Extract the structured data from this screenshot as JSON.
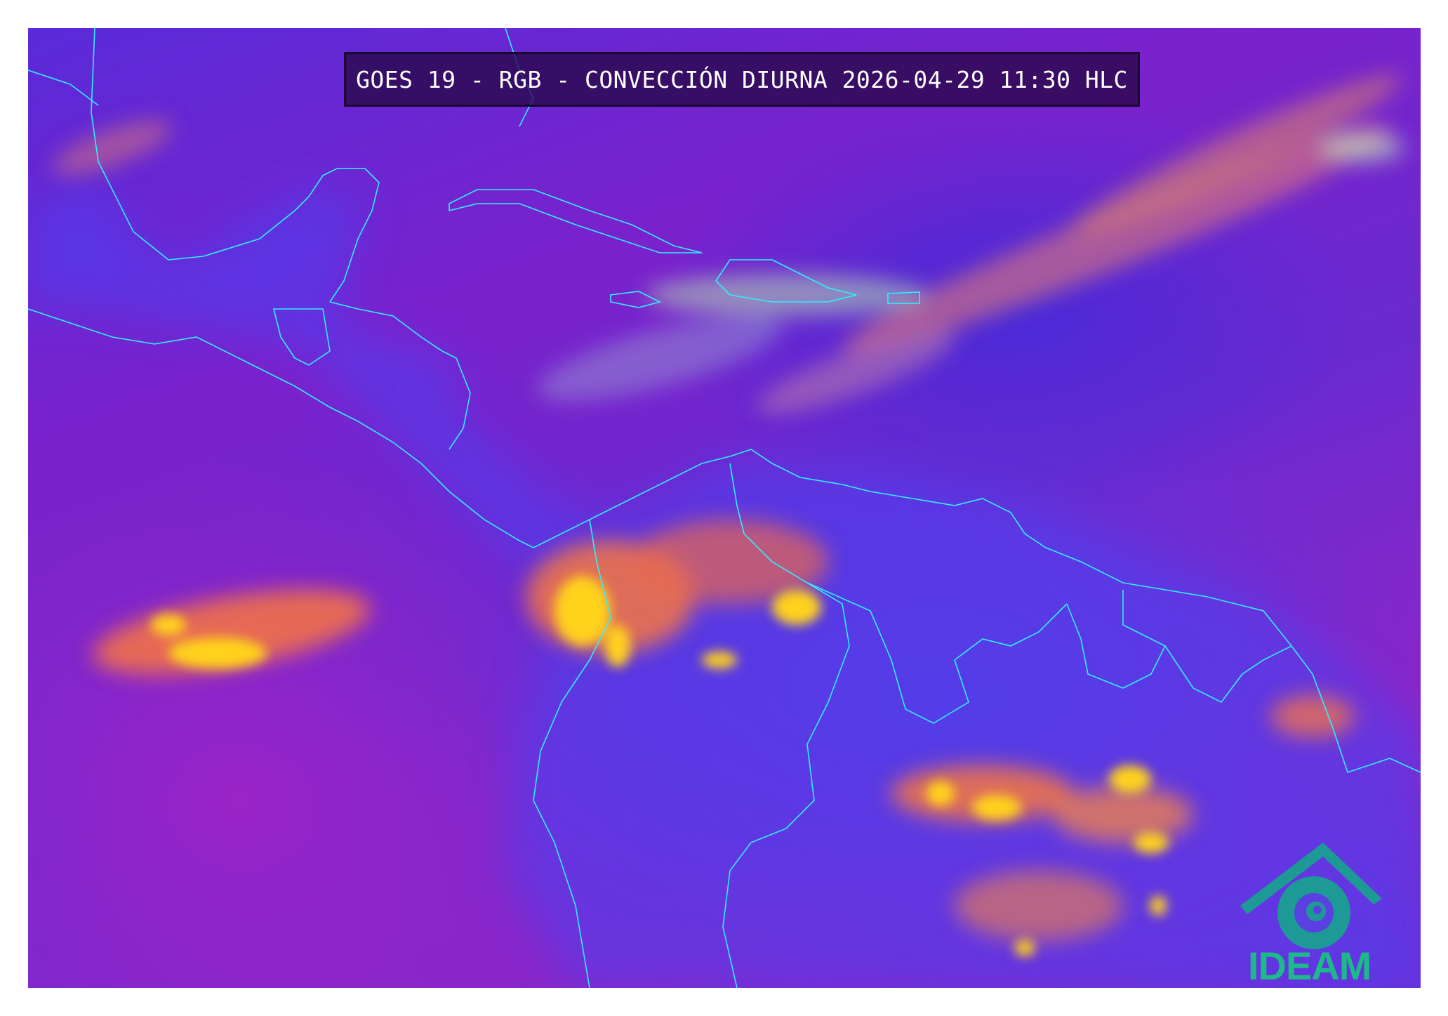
{
  "title": "GOES 19 - RGB - CONVECCIÓN DIURNA 2026-04-29 11:30 HLC",
  "logo": {
    "text": "IDEAM",
    "color": "#1db98a",
    "icon": "ideam-eye-spiral-logo"
  },
  "map": {
    "product": "RGB Convección Diurna",
    "border_color": "#2ef0ff",
    "colors": {
      "background": "#6a26d0",
      "deep_convection": "#ffd21e",
      "convection_edge": "#ff7a3a",
      "low_cloud": "#9fd8c8"
    }
  }
}
